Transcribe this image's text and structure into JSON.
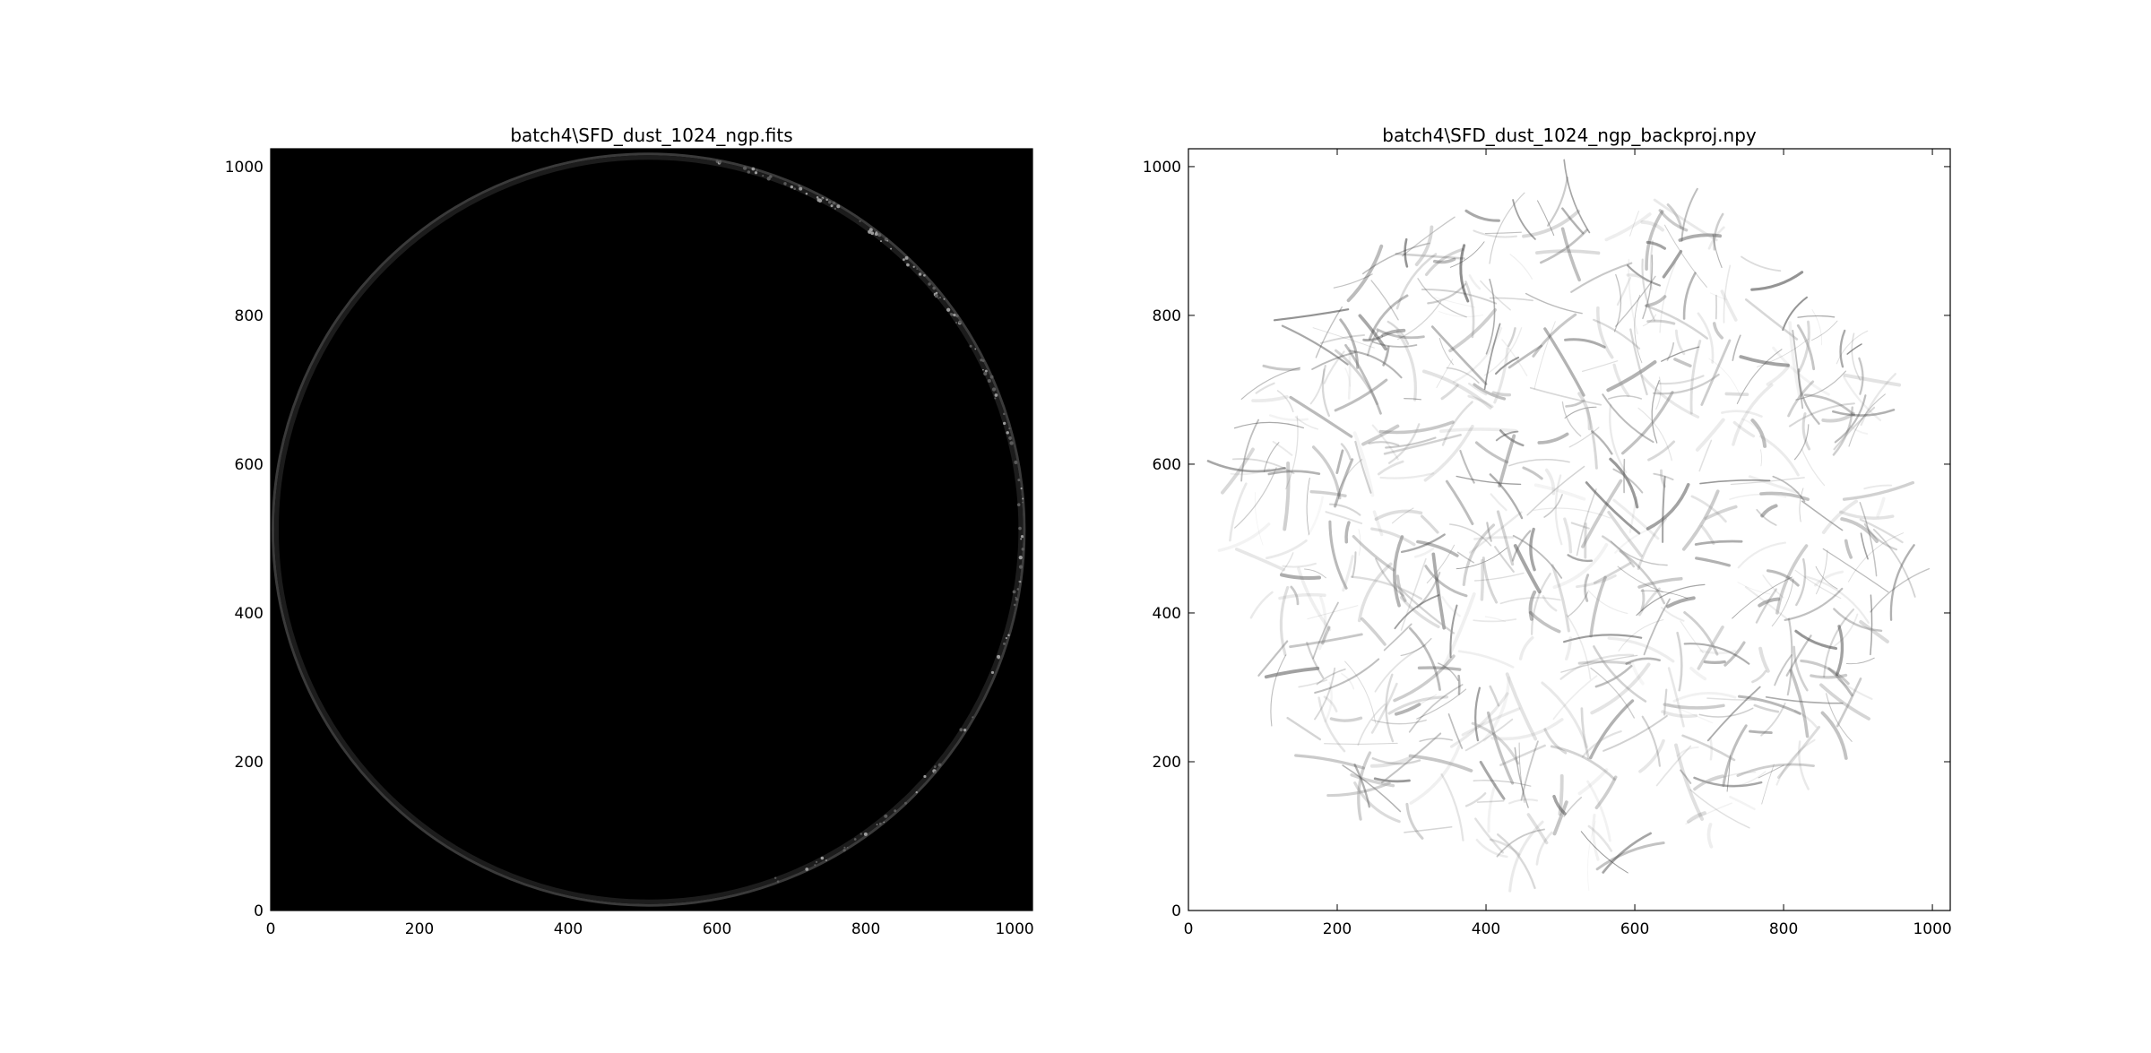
{
  "chart_data": [
    {
      "type": "heatmap",
      "title": "batch4\\SFD_dust_1024_ngp.fits",
      "xlabel": "",
      "ylabel": "",
      "xlim": [
        0,
        1024
      ],
      "ylim": [
        0,
        1024
      ],
      "xticks": [
        0,
        200,
        400,
        600,
        800,
        1000
      ],
      "yticks": [
        0,
        200,
        400,
        600,
        800,
        1000
      ],
      "colormap": "gray",
      "background": "#000000",
      "feature": "faint bright circular rim",
      "circle_center": [
        508,
        512
      ],
      "circle_radius": 505
    },
    {
      "type": "heatmap",
      "title": "batch4\\SFD_dust_1024_ngp_backproj.npy",
      "xlabel": "",
      "ylabel": "",
      "xlim": [
        0,
        1024
      ],
      "ylim": [
        0,
        1024
      ],
      "xticks": [
        0,
        200,
        400,
        600,
        800,
        1000
      ],
      "yticks": [
        0,
        200,
        400,
        600,
        800,
        1000
      ],
      "colormap": "gray_r",
      "background": "#ffffff",
      "feature": "dark filamentary strokes inside disk",
      "circle_center": [
        512,
        512
      ],
      "circle_radius": 470
    }
  ]
}
